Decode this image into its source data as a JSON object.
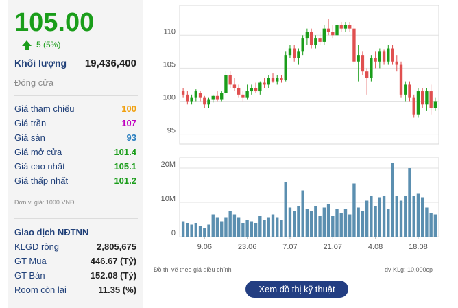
{
  "quote": {
    "price": "105.00",
    "change": "5 (5%)"
  },
  "volume": {
    "label": "Khối lượng",
    "value": "19,436,400"
  },
  "status": "Đóng cửa",
  "price_levels": [
    {
      "label": "Giá tham chiếu",
      "value": "100",
      "color": "#f0a010"
    },
    {
      "label": "Giá trần",
      "value": "107",
      "color": "#c000c0"
    },
    {
      "label": "Giá sàn",
      "value": "93",
      "color": "#2a7fc0"
    },
    {
      "label": "Giá mở cửa",
      "value": "101.4",
      "color": "#1a9d1a"
    },
    {
      "label": "Giá cao nhất",
      "value": "105.1",
      "color": "#1a9d1a"
    },
    {
      "label": "Giá thấp nhất",
      "value": "101.2",
      "color": "#1a9d1a"
    }
  ],
  "unit_note": "Đơn vị giá: 1000 VNĐ",
  "foreign": {
    "title": "Giao dịch NĐTNN",
    "rows": [
      {
        "label": "KLGD ròng",
        "value": "2,805,675"
      },
      {
        "label": "GT Mua",
        "value": "446.67 (Tỷ)"
      },
      {
        "label": "GT Bán",
        "value": "152.08 (Tỷ)"
      },
      {
        "label": "Room còn lại",
        "value": "11.35 (%)"
      }
    ]
  },
  "chart_footer": {
    "left": "Đồ thị vẽ theo giá điều chỉnh",
    "right": "dv KLg: 10,000cp"
  },
  "tech_button": "Xem đồ thị kỹ thuật",
  "colors": {
    "up": "#1a9d1a",
    "down": "#e05050",
    "volume": "#5b8fb0"
  },
  "chart_data": {
    "type": "candlestick",
    "price_axis": {
      "ticks": [
        "95",
        "100",
        "105",
        "110"
      ],
      "ylim": [
        93.5,
        114.5
      ]
    },
    "volume_axis": {
      "ticks": [
        "0",
        "10M",
        "20M"
      ],
      "ylim": [
        0,
        23
      ]
    },
    "x_ticks": [
      "9.06",
      "23.06",
      "7.07",
      "21.07",
      "4.08",
      "18.08"
    ],
    "x_tick_index": [
      5,
      15,
      25,
      35,
      45,
      55
    ],
    "candles": [
      [
        101.5,
        102.0,
        100.5,
        101.0
      ],
      [
        101.0,
        101.5,
        99.5,
        100.0
      ],
      [
        100.0,
        101.0,
        99.5,
        100.5
      ],
      [
        100.5,
        101.8,
        100.0,
        101.5
      ],
      [
        101.2,
        101.5,
        100.0,
        100.5
      ],
      [
        100.5,
        100.8,
        99.0,
        99.5
      ],
      [
        99.5,
        100.5,
        99.0,
        100.2
      ],
      [
        100.2,
        101.0,
        99.8,
        100.8
      ],
      [
        100.8,
        101.5,
        100.0,
        100.2
      ],
      [
        100.2,
        101.5,
        100.0,
        101.2
      ],
      [
        101.2,
        104.5,
        101.0,
        104.0
      ],
      [
        104.0,
        104.5,
        102.0,
        102.5
      ],
      [
        102.5,
        103.5,
        101.5,
        102.0
      ],
      [
        102.0,
        102.5,
        100.5,
        101.0
      ],
      [
        101.0,
        101.5,
        100.0,
        100.5
      ],
      [
        100.5,
        102.5,
        100.2,
        101.5
      ],
      [
        101.5,
        102.5,
        101.0,
        102.0
      ],
      [
        102.0,
        102.8,
        101.2,
        101.5
      ],
      [
        101.5,
        103.0,
        101.0,
        102.8
      ],
      [
        102.8,
        103.5,
        102.0,
        102.5
      ],
      [
        102.5,
        104.0,
        102.0,
        103.5
      ],
      [
        103.5,
        104.2,
        102.8,
        103.0
      ],
      [
        103.0,
        104.0,
        102.5,
        103.5
      ],
      [
        103.5,
        104.0,
        102.8,
        103.2
      ],
      [
        103.2,
        107.5,
        103.0,
        107.0
      ],
      [
        107.0,
        108.5,
        106.5,
        108.0
      ],
      [
        108.0,
        108.5,
        106.0,
        106.5
      ],
      [
        106.5,
        108.0,
        105.5,
        107.5
      ],
      [
        107.5,
        110.0,
        107.0,
        109.5
      ],
      [
        109.5,
        111.0,
        108.5,
        110.5
      ],
      [
        110.5,
        111.0,
        108.0,
        108.5
      ],
      [
        108.5,
        110.0,
        108.0,
        109.5
      ],
      [
        109.5,
        110.5,
        108.5,
        109.0
      ],
      [
        109.0,
        111.5,
        108.5,
        111.0
      ],
      [
        111.0,
        112.5,
        110.0,
        110.5
      ],
      [
        110.5,
        111.5,
        109.5,
        110.0
      ],
      [
        110.0,
        112.0,
        109.5,
        111.5
      ],
      [
        111.5,
        112.0,
        110.5,
        111.0
      ],
      [
        111.0,
        112.0,
        110.5,
        111.5
      ],
      [
        111.5,
        112.0,
        110.5,
        111.0
      ],
      [
        111.0,
        111.5,
        105.5,
        106.0
      ],
      [
        106.0,
        108.5,
        103.0,
        107.0
      ],
      [
        107.0,
        107.5,
        104.0,
        104.5
      ],
      [
        104.5,
        105.0,
        101.0,
        103.5
      ],
      [
        103.5,
        107.0,
        103.0,
        106.5
      ],
      [
        106.5,
        107.5,
        105.0,
        106.0
      ],
      [
        106.0,
        108.0,
        105.0,
        107.5
      ],
      [
        107.5,
        107.8,
        105.5,
        106.0
      ],
      [
        106.0,
        108.5,
        105.5,
        108.0
      ],
      [
        108.0,
        108.5,
        105.5,
        106.0
      ],
      [
        106.0,
        107.0,
        104.5,
        105.5
      ],
      [
        105.5,
        106.0,
        100.5,
        101.0
      ],
      [
        101.0,
        103.0,
        100.0,
        102.5
      ],
      [
        102.5,
        103.0,
        100.0,
        100.5
      ],
      [
        100.5,
        101.0,
        97.5,
        98.0
      ],
      [
        98.0,
        102.0,
        97.5,
        101.5
      ],
      [
        101.5,
        102.0,
        99.0,
        99.5
      ],
      [
        99.5,
        102.0,
        98.5,
        101.5
      ],
      [
        101.5,
        102.5,
        98.0,
        99.0
      ],
      [
        99.0,
        100.5,
        98.5,
        100.0
      ]
    ],
    "volumes": [
      4.5,
      4.0,
      3.5,
      4.0,
      3.0,
      2.5,
      3.5,
      6.5,
      5.5,
      4.5,
      5.5,
      7.5,
      6.5,
      5.5,
      4.0,
      5.0,
      4.5,
      4.0,
      6.0,
      5.0,
      5.5,
      6.5,
      5.5,
      5.0,
      16.0,
      8.5,
      7.5,
      9.0,
      13.5,
      8.0,
      7.5,
      9.0,
      6.0,
      8.5,
      9.5,
      6.0,
      8.0,
      7.0,
      8.0,
      6.5,
      15.5,
      8.5,
      7.5,
      10.5,
      12.0,
      9.0,
      11.5,
      12.0,
      8.0,
      21.5,
      12.0,
      10.5,
      12.0,
      20.0,
      12.0,
      12.5,
      11.5,
      8.5,
      7.0,
      6.5
    ]
  }
}
